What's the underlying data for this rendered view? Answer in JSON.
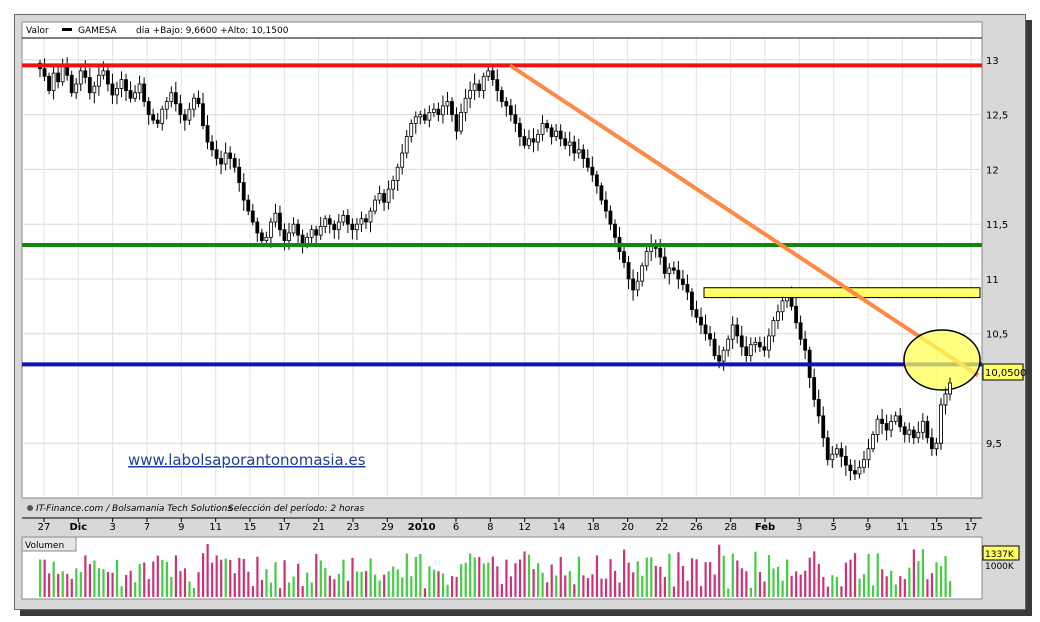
{
  "chart_data": {
    "type": "candlestick",
    "header": {
      "label": "Valor",
      "ticker": "GAMESA",
      "stats": "día +Bajo: 9,6600 +Alto: 10,1500"
    },
    "footer_text": {
      "source": "IT-Finance.com / Bolsamania Tech Solutions",
      "period": "Selección del período: 2 horas"
    },
    "watermark": "www.labolsaporantonomasia.es",
    "y_axis": {
      "min": 9.0,
      "max": 13.2,
      "ticks": [
        {
          "value": 13,
          "label": "13"
        },
        {
          "value": 12.5,
          "label": "12,5"
        },
        {
          "value": 12,
          "label": "12"
        },
        {
          "value": 11.5,
          "label": "11,5"
        },
        {
          "value": 11,
          "label": "11"
        },
        {
          "value": 10.5,
          "label": "10,5"
        },
        {
          "value": 9.5,
          "label": "9,5"
        }
      ]
    },
    "last_price": {
      "value": 10.05,
      "label": "10,0500"
    },
    "x_axis": {
      "ticks": [
        {
          "label": "27",
          "bold": false
        },
        {
          "label": "Dic",
          "bold": true
        },
        {
          "label": "3",
          "bold": false
        },
        {
          "label": "7",
          "bold": false
        },
        {
          "label": "9",
          "bold": false
        },
        {
          "label": "11",
          "bold": false
        },
        {
          "label": "15",
          "bold": false
        },
        {
          "label": "17",
          "bold": false
        },
        {
          "label": "21",
          "bold": false
        },
        {
          "label": "23",
          "bold": false
        },
        {
          "label": "29",
          "bold": false
        },
        {
          "label": "2010",
          "bold": true
        },
        {
          "label": "6",
          "bold": false
        },
        {
          "label": "8",
          "bold": false
        },
        {
          "label": "12",
          "bold": false
        },
        {
          "label": "14",
          "bold": false
        },
        {
          "label": "18",
          "bold": false
        },
        {
          "label": "20",
          "bold": false
        },
        {
          "label": "22",
          "bold": false
        },
        {
          "label": "26",
          "bold": false
        },
        {
          "label": "28",
          "bold": false
        },
        {
          "label": "Feb",
          "bold": true
        },
        {
          "label": "3",
          "bold": false
        },
        {
          "label": "5",
          "bold": false
        },
        {
          "label": "9",
          "bold": false
        },
        {
          "label": "11",
          "bold": false
        },
        {
          "label": "15",
          "bold": false
        },
        {
          "label": "17",
          "bold": false
        }
      ]
    },
    "series": [
      {
        "values": [
          12.92,
          12.85,
          12.72,
          12.88,
          12.8,
          12.95,
          12.86,
          12.7,
          12.78,
          12.9,
          12.84,
          12.7,
          12.76,
          12.86,
          12.9,
          12.78,
          12.68,
          12.74,
          12.82,
          12.72,
          12.65,
          12.7,
          12.78,
          12.62,
          12.5,
          12.45,
          12.42,
          12.55,
          12.62,
          12.7,
          12.6,
          12.5,
          12.45,
          12.55,
          12.65,
          12.6,
          12.4,
          12.25,
          12.18,
          12.1,
          12.05,
          12.15,
          12.1,
          12.02,
          11.88,
          11.72,
          11.62,
          11.52,
          11.42,
          11.35,
          11.38,
          11.52,
          11.6,
          11.45,
          11.35,
          11.42,
          11.5,
          11.4,
          11.32,
          11.38,
          11.45,
          11.4,
          11.48,
          11.55,
          11.5,
          11.45,
          11.52,
          11.58,
          11.5,
          11.45,
          11.5,
          11.55,
          11.52,
          11.62,
          11.72,
          11.78,
          11.7,
          11.82,
          11.9,
          12.02,
          12.15,
          12.3,
          12.42,
          12.48,
          12.5,
          12.45,
          12.52,
          12.55,
          12.5,
          12.58,
          12.62,
          12.5,
          12.35,
          12.52,
          12.65,
          12.72,
          12.78,
          12.72,
          12.85,
          12.9,
          12.82,
          12.72,
          12.62,
          12.58,
          12.5,
          12.42,
          12.3,
          12.22,
          12.28,
          12.25,
          12.32,
          12.42,
          12.38,
          12.3,
          12.35,
          12.28,
          12.22,
          12.25,
          12.15,
          12.18,
          12.1,
          12.02,
          11.95,
          11.85,
          11.72,
          11.62,
          11.5,
          11.38,
          11.25,
          11.15,
          11.0,
          10.9,
          10.98,
          11.12,
          11.25,
          11.32,
          11.28,
          11.2,
          11.05,
          11.1,
          11.08,
          11.0,
          10.95,
          10.88,
          10.72,
          10.65,
          10.58,
          10.5,
          10.45,
          10.3,
          10.25,
          10.35,
          10.45,
          10.58,
          10.48,
          10.38,
          10.3,
          10.4,
          10.42,
          10.38,
          10.35,
          10.48,
          10.62,
          10.7,
          10.8,
          10.85,
          10.75,
          10.6,
          10.45,
          10.35,
          10.1,
          9.9,
          9.75,
          9.55,
          9.35,
          9.4,
          9.45,
          9.38,
          9.3,
          9.25,
          9.22,
          9.28,
          9.35,
          9.45,
          9.58,
          9.72,
          9.68,
          9.62,
          9.7,
          9.75,
          9.65,
          9.58,
          9.62,
          9.55,
          9.6,
          9.7,
          9.55,
          9.45,
          9.5,
          9.85,
          9.95,
          10.05
        ]
      }
    ],
    "resistance_lines": [
      {
        "name": "red",
        "value": 12.95,
        "color": "#ee1111"
      },
      {
        "name": "green",
        "value": 11.31,
        "color": "#118811"
      },
      {
        "name": "blue",
        "value": 10.22,
        "color": "#1111bb"
      }
    ],
    "zone": {
      "low": 10.83,
      "high": 10.92,
      "color": "#ffff66"
    },
    "trendline": {
      "from_price": 12.95,
      "to_price": 10.12,
      "color": "#ff8844"
    },
    "volume": {
      "label": "Volumen",
      "scale_label": "1000K",
      "last_label": "1337K"
    }
  }
}
